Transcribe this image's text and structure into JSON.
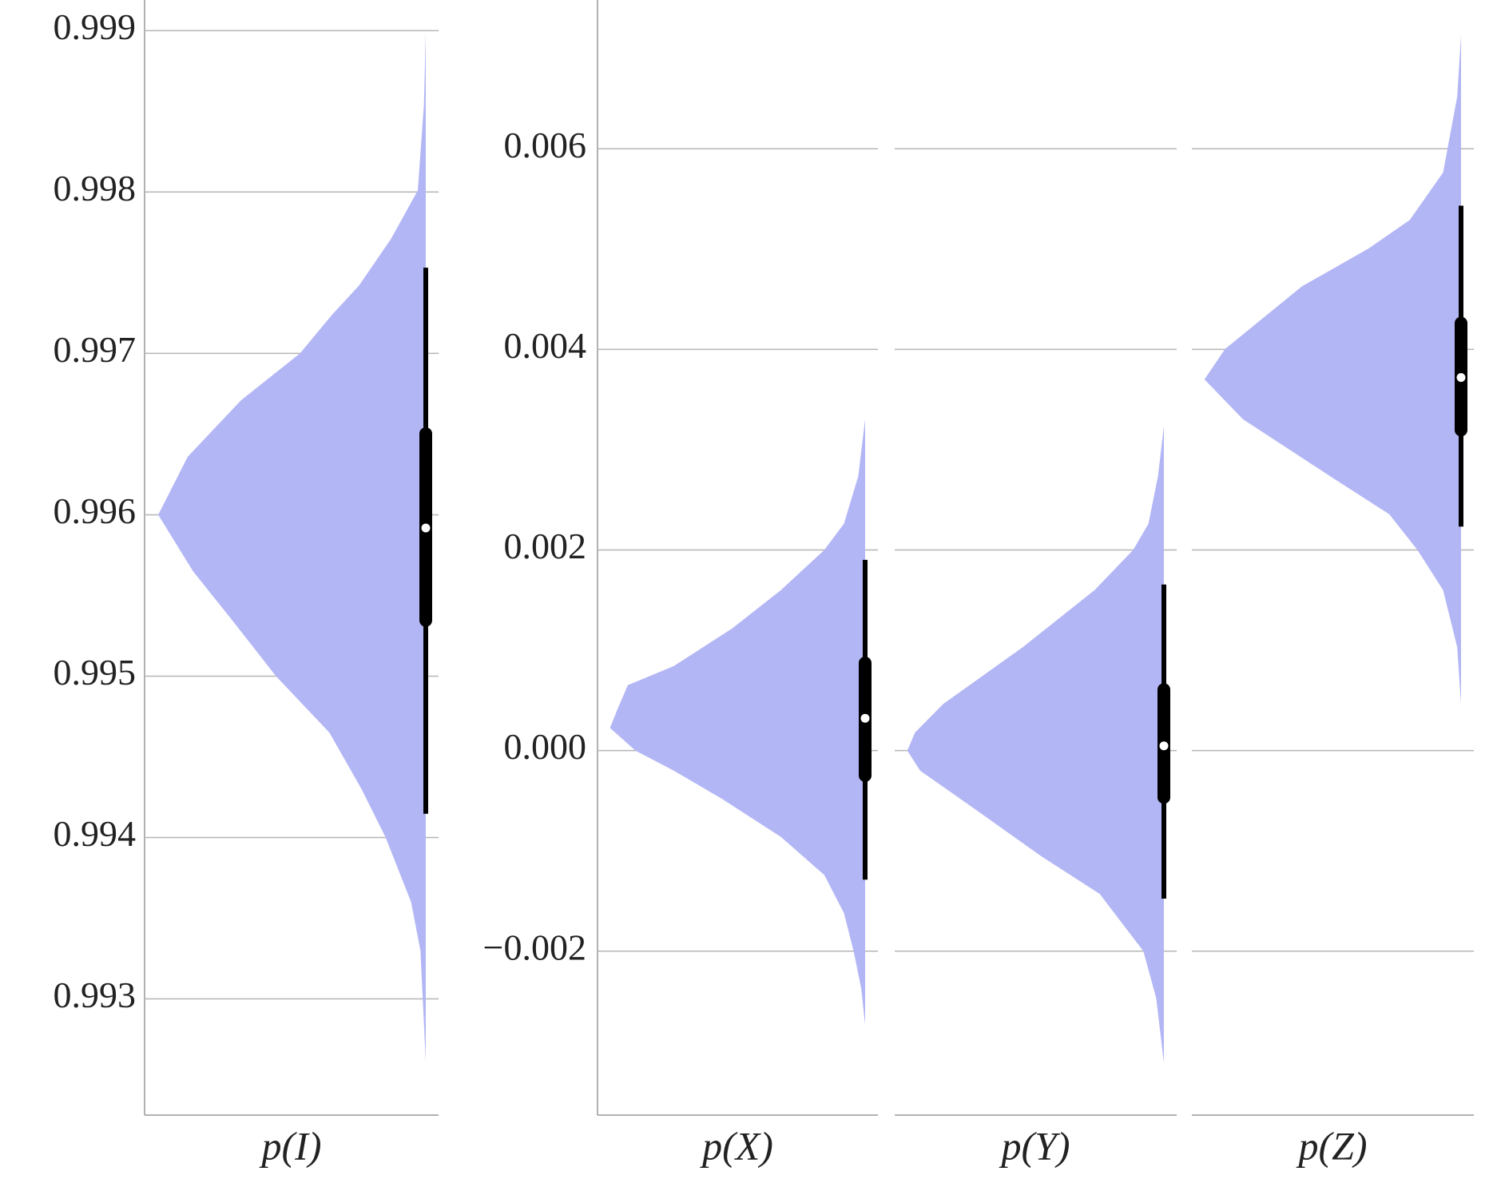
{
  "chart_data": [
    {
      "type": "violin",
      "categories": [
        "p(I)"
      ],
      "color": "#b3b6f5",
      "grid": true,
      "ylim": [
        0.99228,
        0.99918
      ],
      "yticks": [
        0.993,
        0.994,
        0.995,
        0.996,
        0.997,
        0.998,
        0.999
      ],
      "violins": [
        {
          "y": [
            0.99899,
            0.99854,
            0.99801,
            0.99771,
            0.99742,
            0.99724,
            0.997,
            0.99671,
            0.99636,
            0.996,
            0.99565,
            0.99536,
            0.995,
            0.99465,
            0.9943,
            0.994,
            0.9936,
            0.9933,
            0.99261
          ],
          "density": [
            0,
            0.007,
            0.03,
            0.13,
            0.25,
            0.35,
            0.47,
            0.69,
            0.89,
            1,
            0.87,
            0.73,
            0.56,
            0.36,
            0.24,
            0.15,
            0.055,
            0.02,
            0
          ],
          "whisker": [
            0.994147,
            0.997531
          ],
          "box": [
            0.995306,
            0.996542
          ],
          "median": 0.995918
        }
      ]
    },
    {
      "type": "violin",
      "categories": [
        "p(X)",
        "p(Y)",
        "p(Z)"
      ],
      "color": "#b3b6f5",
      "grid": true,
      "ylim": [
        -0.003634,
        0.007467
      ],
      "yticks": [
        {
          "value": -0.002,
          "label": "−0.002"
        },
        {
          "value": 0,
          "label": "0.000"
        },
        0.002,
        0.004,
        0.006
      ],
      "violins": [
        {
          "y": [
            0.003303,
            0.002735,
            0.002262,
            0.002,
            0.0016,
            0.00122,
            0.000842,
            0.000653,
            0.000416,
            0.000227,
            0,
            -0.000199,
            -0.000483,
            -0.000861,
            -0.00124,
            -0.00162,
            -0.002,
            -0.002375,
            -0.002735
          ],
          "density": [
            0,
            0.027,
            0.083,
            0.16,
            0.33,
            0.52,
            0.75,
            0.93,
            0.97,
            1,
            0.9,
            0.75,
            0.56,
            0.33,
            0.16,
            0.083,
            0.045,
            0.015,
            0
          ],
          "whisker": [
            -0.001287,
            0.001902
          ],
          "box": [
            -0.000312,
            0.000937
          ],
          "median": 0.000322
        },
        {
          "y": [
            0.003236,
            0.002735,
            0.002262,
            0.002,
            0.0016,
            0.001031,
            0.000464,
            0.00018,
            0,
            -0.000199,
            -0.000577,
            -0.00105,
            -0.001429,
            -0.002,
            -0.00247,
            -0.003113
          ],
          "density": [
            0,
            0.023,
            0.06,
            0.12,
            0.27,
            0.55,
            0.86,
            0.97,
            1,
            0.95,
            0.74,
            0.48,
            0.25,
            0.08,
            0.03,
            0
          ],
          "whisker": [
            -0.001476,
            0.001656
          ],
          "box": [
            -0.00053,
            0.000672
          ],
          "median": 4.73e-05
        },
        {
          "y": [
            0.007135,
            0.00652,
            0.005763,
            0.00529,
            0.005006,
            0.004628,
            0.004003,
            0.0037,
            0.003303,
            0.002735,
            0.002356,
            0.002,
            0.0016,
            0.001031,
            0.000464
          ],
          "density": [
            0,
            0.015,
            0.07,
            0.2,
            0.36,
            0.62,
            0.92,
            1,
            0.85,
            0.51,
            0.28,
            0.17,
            0.07,
            0.015,
            0
          ],
          "whisker": [
            0.002233,
            0.005432
          ],
          "box": [
            0.003132,
            0.004325
          ],
          "median": 0.003719
        }
      ]
    }
  ]
}
